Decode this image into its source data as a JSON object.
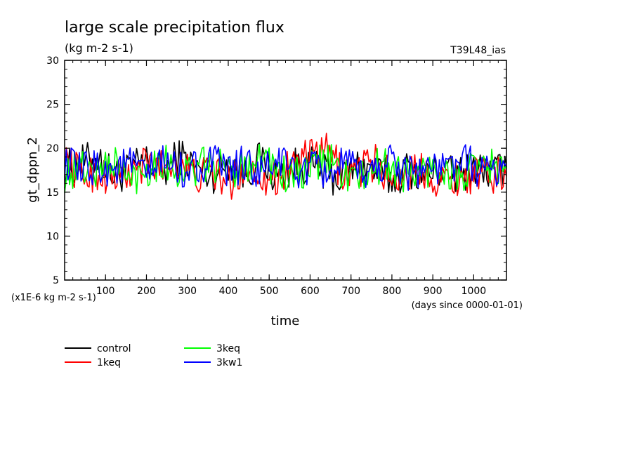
{
  "title": "large scale precipitation flux",
  "units": "(kg m-2 s-1)",
  "run_tag": "T39L48_ias",
  "y_scale_note": "(x1E-6 kg m-2 s-1)",
  "x_unit_note": "(days since 0000-01-01)",
  "chart_data": {
    "type": "line",
    "title": "large scale precipitation flux",
    "xlabel": "time",
    "ylabel": "gt_dppn_2",
    "xlim": [
      0,
      1080
    ],
    "ylim": [
      5,
      30
    ],
    "x_ticks": [
      100,
      200,
      300,
      400,
      500,
      600,
      700,
      800,
      900,
      1000
    ],
    "y_ticks": [
      5,
      10,
      15,
      20,
      25,
      30
    ],
    "x_tick_labels": [
      "100",
      "200",
      "300",
      "400",
      "500",
      "600",
      "700",
      "800",
      "900",
      "1000"
    ],
    "y_tick_labels": [
      "5",
      "10",
      "15",
      "20",
      "25",
      "30"
    ],
    "grid": false,
    "legend_position": "bottom-left",
    "x": [
      0,
      40,
      80,
      120,
      160,
      200,
      240,
      280,
      320,
      360,
      400,
      440,
      480,
      520,
      560,
      600,
      640,
      680,
      720,
      760,
      800,
      840,
      880,
      920,
      960,
      1000,
      1040,
      1080
    ],
    "series": [
      {
        "name": "control",
        "color": "#000000",
        "values": [
          17.6,
          18.3,
          19.0,
          16.8,
          17.4,
          18.6,
          17.2,
          19.2,
          17.8,
          16.9,
          18.4,
          17.1,
          18.8,
          16.6,
          17.9,
          18.1,
          17.0,
          16.5,
          18.2,
          17.3,
          16.4,
          17.7,
          16.9,
          17.5,
          16.8,
          17.9,
          17.2,
          17.8
        ]
      },
      {
        "name": "1keq",
        "color": "#ff0000",
        "values": [
          18.8,
          16.9,
          17.2,
          16.6,
          17.0,
          18.2,
          17.9,
          18.5,
          16.7,
          17.4,
          15.9,
          17.8,
          17.0,
          16.5,
          18.6,
          18.8,
          19.6,
          17.3,
          17.6,
          18.4,
          16.5,
          17.1,
          17.6,
          16.3,
          16.8,
          17.0,
          16.9,
          16.8
        ]
      },
      {
        "name": "3keq",
        "color": "#00ff00",
        "values": [
          17.0,
          17.9,
          17.4,
          18.6,
          16.2,
          17.8,
          18.7,
          17.2,
          17.6,
          18.4,
          17.1,
          18.2,
          19.2,
          17.3,
          16.6,
          17.5,
          18.9,
          17.2,
          16.4,
          17.8,
          18.0,
          16.8,
          17.3,
          17.9,
          16.5,
          17.4,
          18.1,
          17.6
        ]
      },
      {
        "name": "3kw1",
        "color": "#0000ff",
        "values": [
          18.4,
          17.2,
          18.0,
          17.6,
          18.2,
          16.9,
          18.6,
          17.5,
          17.9,
          18.4,
          17.3,
          18.3,
          17.0,
          18.7,
          17.4,
          17.6,
          17.2,
          18.1,
          17.1,
          17.5,
          18.9,
          17.3,
          18.0,
          17.4,
          18.6,
          18.0,
          17.1,
          18.3
        ]
      }
    ]
  }
}
